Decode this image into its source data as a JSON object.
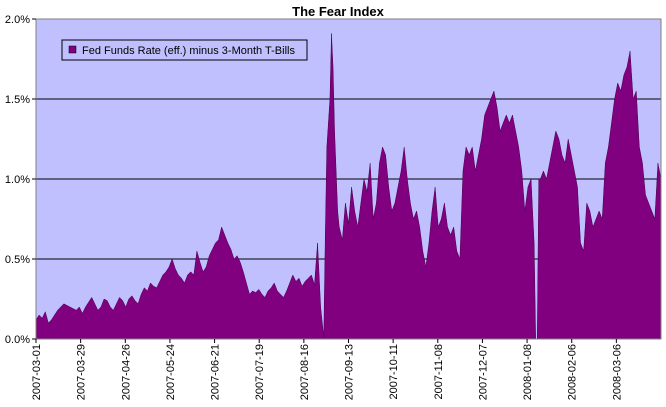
{
  "chart_data": {
    "type": "area",
    "title": "The Fear Index",
    "xlabel": "",
    "ylabel": "",
    "ylim": [
      0,
      2.0
    ],
    "y_ticks": [
      {
        "value": 0.0,
        "label": "0.0%"
      },
      {
        "value": 0.5,
        "label": "0.5%"
      },
      {
        "value": 1.0,
        "label": "1.0%"
      },
      {
        "value": 1.5,
        "label": "1.5%"
      },
      {
        "value": 2.0,
        "label": "2.0%"
      }
    ],
    "x_tick_labels": [
      "2007-03-01",
      "2007-03-29",
      "2007-04-26",
      "2007-05-24",
      "2007-06-21",
      "2007-07-19",
      "2007-08-16",
      "2007-09-13",
      "2007-10-11",
      "2007-11-08",
      "2007-12-07",
      "2008-01-08",
      "2008-02-06",
      "2008-03-06"
    ],
    "grid": "horizontal",
    "legend_position": "top-left",
    "colors": {
      "series": "#800080",
      "plot_bg": "#c0c0ff",
      "grid": "#000000"
    },
    "series": [
      {
        "name": "Fed Funds Rate (eff.) minus 3-Month T-Bills",
        "y_points": [
          [
            0,
            0.12
          ],
          [
            1,
            0.15
          ],
          [
            2,
            0.13
          ],
          [
            3,
            0.17
          ],
          [
            4,
            0.1
          ],
          [
            5,
            0.12
          ],
          [
            6,
            0.15
          ],
          [
            7,
            0.18
          ],
          [
            8,
            0.2
          ],
          [
            9,
            0.22
          ],
          [
            10,
            0.21
          ],
          [
            11,
            0.2
          ],
          [
            12,
            0.19
          ],
          [
            13,
            0.18
          ],
          [
            14,
            0.2
          ],
          [
            15,
            0.16
          ],
          [
            16,
            0.2
          ],
          [
            17,
            0.23
          ],
          [
            18,
            0.26
          ],
          [
            19,
            0.22
          ],
          [
            20,
            0.18
          ],
          [
            21,
            0.2
          ],
          [
            22,
            0.25
          ],
          [
            23,
            0.24
          ],
          [
            24,
            0.2
          ],
          [
            25,
            0.18
          ],
          [
            26,
            0.22
          ],
          [
            27,
            0.26
          ],
          [
            28,
            0.24
          ],
          [
            29,
            0.2
          ],
          [
            30,
            0.25
          ],
          [
            31,
            0.27
          ],
          [
            32,
            0.24
          ],
          [
            33,
            0.22
          ],
          [
            34,
            0.28
          ],
          [
            35,
            0.32
          ],
          [
            36,
            0.3
          ],
          [
            37,
            0.35
          ],
          [
            38,
            0.33
          ],
          [
            39,
            0.32
          ],
          [
            40,
            0.36
          ],
          [
            41,
            0.4
          ],
          [
            42,
            0.42
          ],
          [
            43,
            0.45
          ],
          [
            44,
            0.5
          ],
          [
            45,
            0.44
          ],
          [
            46,
            0.4
          ],
          [
            47,
            0.38
          ],
          [
            48,
            0.35
          ],
          [
            49,
            0.4
          ],
          [
            50,
            0.42
          ],
          [
            51,
            0.4
          ],
          [
            52,
            0.55
          ],
          [
            53,
            0.48
          ],
          [
            54,
            0.42
          ],
          [
            55,
            0.45
          ],
          [
            56,
            0.52
          ],
          [
            57,
            0.56
          ],
          [
            58,
            0.6
          ],
          [
            59,
            0.62
          ],
          [
            60,
            0.7
          ],
          [
            61,
            0.65
          ],
          [
            62,
            0.6
          ],
          [
            63,
            0.56
          ],
          [
            64,
            0.5
          ],
          [
            65,
            0.52
          ],
          [
            66,
            0.48
          ],
          [
            67,
            0.42
          ],
          [
            68,
            0.35
          ],
          [
            69,
            0.28
          ],
          [
            70,
            0.3
          ],
          [
            71,
            0.29
          ],
          [
            72,
            0.31
          ],
          [
            73,
            0.28
          ],
          [
            74,
            0.26
          ],
          [
            75,
            0.3
          ],
          [
            76,
            0.32
          ],
          [
            77,
            0.35
          ],
          [
            78,
            0.3
          ],
          [
            79,
            0.28
          ],
          [
            80,
            0.26
          ],
          [
            81,
            0.3
          ],
          [
            82,
            0.35
          ],
          [
            83,
            0.4
          ],
          [
            84,
            0.36
          ],
          [
            85,
            0.38
          ],
          [
            86,
            0.33
          ],
          [
            87,
            0.36
          ],
          [
            88,
            0.38
          ],
          [
            89,
            0.4
          ],
          [
            90,
            0.34
          ],
          [
            91,
            0.6
          ],
          [
            92,
            0.2
          ],
          [
            93,
            0.01
          ],
          [
            93.5,
            0.65
          ],
          [
            94,
            1.2
          ],
          [
            94.5,
            1.35
          ],
          [
            95,
            1.5
          ],
          [
            95.5,
            1.91
          ],
          [
            96,
            1.7
          ],
          [
            96.5,
            1.3
          ],
          [
            97,
            1.05
          ],
          [
            97.5,
            0.8
          ],
          [
            98,
            0.7
          ],
          [
            99,
            0.62
          ],
          [
            100,
            0.85
          ],
          [
            101,
            0.72
          ],
          [
            102,
            0.95
          ],
          [
            103,
            0.8
          ],
          [
            104,
            0.7
          ],
          [
            105,
            0.85
          ],
          [
            106,
            1.0
          ],
          [
            107,
            0.92
          ],
          [
            108,
            1.1
          ],
          [
            109,
            0.75
          ],
          [
            110,
            0.85
          ],
          [
            111,
            1.1
          ],
          [
            112,
            1.2
          ],
          [
            113,
            1.15
          ],
          [
            114,
            0.95
          ],
          [
            115,
            0.8
          ],
          [
            116,
            0.85
          ],
          [
            117,
            0.95
          ],
          [
            118,
            1.05
          ],
          [
            119,
            1.2
          ],
          [
            120,
            1.0
          ],
          [
            121,
            0.85
          ],
          [
            122,
            0.75
          ],
          [
            123,
            0.8
          ],
          [
            124,
            0.7
          ],
          [
            125,
            0.55
          ],
          [
            126,
            0.45
          ],
          [
            127,
            0.6
          ],
          [
            128,
            0.8
          ],
          [
            129,
            0.95
          ],
          [
            130,
            0.7
          ],
          [
            131,
            0.75
          ],
          [
            132,
            0.85
          ],
          [
            133,
            0.7
          ],
          [
            134,
            0.65
          ],
          [
            135,
            0.7
          ],
          [
            136,
            0.55
          ],
          [
            137,
            0.5
          ],
          [
            138,
            1.05
          ],
          [
            139,
            1.2
          ],
          [
            140,
            1.15
          ],
          [
            141,
            1.2
          ],
          [
            142,
            1.05
          ],
          [
            143,
            1.15
          ],
          [
            144,
            1.25
          ],
          [
            145,
            1.4
          ],
          [
            146,
            1.45
          ],
          [
            147,
            1.5
          ],
          [
            148,
            1.55
          ],
          [
            149,
            1.45
          ],
          [
            150,
            1.3
          ],
          [
            151,
            1.35
          ],
          [
            152,
            1.4
          ],
          [
            153,
            1.35
          ],
          [
            154,
            1.4
          ],
          [
            155,
            1.3
          ],
          [
            156,
            1.2
          ],
          [
            157,
            1.05
          ],
          [
            158,
            0.8
          ],
          [
            159,
            0.95
          ],
          [
            160,
            1.0
          ],
          [
            161,
            0.6
          ],
          [
            161.5,
            0.0
          ],
          [
            162,
            0.0
          ],
          [
            162.5,
            1.0
          ],
          [
            163,
            1.0
          ],
          [
            164,
            1.05
          ],
          [
            165,
            1.0
          ],
          [
            166,
            1.1
          ],
          [
            167,
            1.2
          ],
          [
            168,
            1.3
          ],
          [
            169,
            1.25
          ],
          [
            170,
            1.15
          ],
          [
            171,
            1.1
          ],
          [
            172,
            1.25
          ],
          [
            173,
            1.15
          ],
          [
            174,
            1.05
          ],
          [
            175,
            0.95
          ],
          [
            176,
            0.6
          ],
          [
            177,
            0.55
          ],
          [
            178,
            0.85
          ],
          [
            179,
            0.8
          ],
          [
            180,
            0.7
          ],
          [
            181,
            0.75
          ],
          [
            182,
            0.8
          ],
          [
            183,
            0.75
          ],
          [
            184,
            1.1
          ],
          [
            185,
            1.2
          ],
          [
            186,
            1.35
          ],
          [
            187,
            1.5
          ],
          [
            188,
            1.6
          ],
          [
            189,
            1.55
          ],
          [
            190,
            1.65
          ],
          [
            191,
            1.7
          ],
          [
            192,
            1.8
          ],
          [
            193,
            1.5
          ],
          [
            194,
            1.55
          ],
          [
            195,
            1.2
          ],
          [
            196,
            1.1
          ],
          [
            197,
            0.9
          ],
          [
            198,
            0.85
          ],
          [
            199,
            0.8
          ],
          [
            200,
            0.75
          ],
          [
            201,
            1.1
          ],
          [
            202,
            1.0
          ]
        ]
      }
    ]
  }
}
